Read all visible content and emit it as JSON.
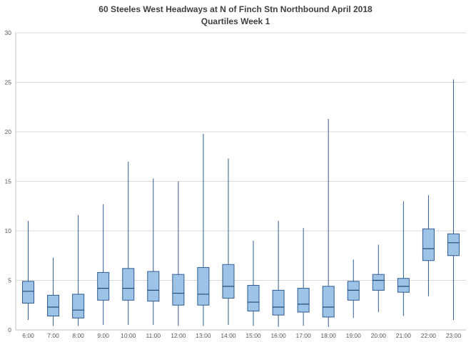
{
  "chart_data": {
    "type": "boxplot",
    "title": "60 Steeles West Headways at N of Finch Stn Northbound April 2018",
    "subtitle": "Quartiles Week 1",
    "xlabel": "",
    "ylabel": "",
    "ylim": [
      0,
      30
    ],
    "yticks": [
      0,
      5,
      10,
      15,
      20,
      25,
      30
    ],
    "grid": true,
    "legend": "none",
    "categories": [
      "6:00",
      "7:00",
      "8:00",
      "9:00",
      "10:00",
      "11:00",
      "12:00",
      "13:00",
      "14:00",
      "15:00",
      "16:00",
      "17:00",
      "18:00",
      "19:00",
      "20:00",
      "21:00",
      "22:00",
      "23:00"
    ],
    "boxes": [
      {
        "low": 1.0,
        "q1": 2.7,
        "median": 3.9,
        "q3": 4.9,
        "high": 11.0
      },
      {
        "low": 0.4,
        "q1": 1.4,
        "median": 2.3,
        "q3": 3.5,
        "high": 7.3
      },
      {
        "low": 0.4,
        "q1": 1.2,
        "median": 2.0,
        "q3": 3.6,
        "high": 11.6
      },
      {
        "low": 0.5,
        "q1": 3.0,
        "median": 4.2,
        "q3": 5.8,
        "high": 12.7
      },
      {
        "low": 0.5,
        "q1": 3.0,
        "median": 4.2,
        "q3": 6.2,
        "high": 17.0
      },
      {
        "low": 0.5,
        "q1": 2.9,
        "median": 4.0,
        "q3": 5.9,
        "high": 15.3
      },
      {
        "low": 0.4,
        "q1": 2.5,
        "median": 3.7,
        "q3": 5.6,
        "high": 15.0
      },
      {
        "low": 0.4,
        "q1": 2.5,
        "median": 3.6,
        "q3": 6.3,
        "high": 19.8
      },
      {
        "low": 0.5,
        "q1": 3.2,
        "median": 4.4,
        "q3": 6.6,
        "high": 17.3
      },
      {
        "low": 0.4,
        "q1": 1.9,
        "median": 2.8,
        "q3": 4.5,
        "high": 9.0
      },
      {
        "low": 0.3,
        "q1": 1.5,
        "median": 2.3,
        "q3": 4.0,
        "high": 11.0
      },
      {
        "low": 0.4,
        "q1": 1.8,
        "median": 2.6,
        "q3": 4.2,
        "high": 10.3
      },
      {
        "low": 0.3,
        "q1": 1.3,
        "median": 2.3,
        "q3": 4.4,
        "high": 21.3
      },
      {
        "low": 1.2,
        "q1": 3.0,
        "median": 4.0,
        "q3": 4.9,
        "high": 7.1
      },
      {
        "low": 1.8,
        "q1": 4.0,
        "median": 5.0,
        "q3": 5.6,
        "high": 8.6
      },
      {
        "low": 1.4,
        "q1": 3.8,
        "median": 4.4,
        "q3": 5.2,
        "high": 13.0
      },
      {
        "low": 3.4,
        "q1": 7.0,
        "median": 8.2,
        "q3": 10.2,
        "high": 13.6
      },
      {
        "low": 1.0,
        "q1": 7.5,
        "median": 8.8,
        "q3": 9.7,
        "high": 25.3
      }
    ],
    "colors": {
      "box_fill": "#9DC3E6",
      "box_stroke": "#2E5B8F",
      "whisker": "#2E5B8F",
      "median": "#1F4E79",
      "gridline": "#D9D9D9",
      "axis_line": "#BFBFBF",
      "axis_text": "#595959",
      "title_text": "#404040",
      "background": "#FFFFFF"
    }
  }
}
